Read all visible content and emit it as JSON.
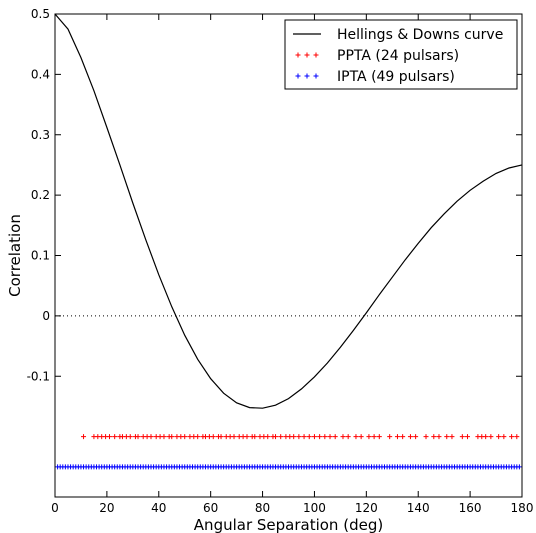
{
  "chart_data": {
    "type": "line",
    "title": "",
    "xlabel": "Angular Separation (deg)",
    "ylabel": "Correlation",
    "xlim": [
      0,
      180
    ],
    "ylim": [
      -0.3,
      0.5
    ],
    "xticks": [
      0,
      20,
      40,
      60,
      80,
      100,
      120,
      140,
      160,
      180
    ],
    "xtick_labels": [
      "0",
      "20",
      "40",
      "60",
      "80",
      "100",
      "120",
      "140",
      "160",
      "180"
    ],
    "yticks": [
      -0.1,
      0,
      0.1,
      0.2,
      0.3,
      0.4,
      0.5
    ],
    "ytick_labels": [
      "-0.1",
      "0",
      "0.1",
      "0.2",
      "0.3",
      "0.4",
      "0.5"
    ],
    "zero_line": {
      "y": 0,
      "style": "dotted"
    },
    "legend_position": "top-right",
    "series": [
      {
        "name": "Hellings & Downs curve",
        "kind": "line",
        "color": "#000000",
        "x": [
          0,
          5,
          10,
          15,
          20,
          25,
          30,
          35,
          40,
          45,
          50,
          55,
          60,
          65,
          70,
          75,
          80,
          85,
          90,
          95,
          100,
          105,
          110,
          115,
          120,
          125,
          130,
          135,
          140,
          145,
          150,
          155,
          160,
          165,
          170,
          175,
          180
        ],
        "y": [
          0.5,
          0.475,
          0.428,
          0.373,
          0.312,
          0.25,
          0.187,
          0.126,
          0.068,
          0.015,
          -0.032,
          -0.072,
          -0.104,
          -0.128,
          -0.144,
          -0.152,
          -0.153,
          -0.148,
          -0.137,
          -0.121,
          -0.101,
          -0.078,
          -0.052,
          -0.024,
          0.005,
          0.035,
          0.064,
          0.093,
          0.12,
          0.146,
          0.169,
          0.19,
          0.208,
          0.223,
          0.236,
          0.245,
          0.25
        ]
      },
      {
        "name": "PPTA (24 pulsars)",
        "kind": "scatter",
        "marker": "+",
        "color": "#ff0000",
        "y_level": -0.2,
        "x": [
          11,
          15,
          16.5,
          18,
          19.5,
          21,
          23,
          25,
          26,
          27.5,
          29,
          31,
          32,
          34,
          35.5,
          37,
          39,
          40.5,
          42,
          44,
          45,
          47,
          48.5,
          50,
          52,
          53.5,
          55,
          57,
          58,
          59.5,
          61,
          63,
          64,
          66,
          67.5,
          69,
          71,
          72.5,
          74,
          76,
          77,
          79,
          80.5,
          82,
          84,
          85,
          87,
          89,
          90.5,
          92,
          94,
          96,
          98,
          100,
          102,
          104,
          106,
          108,
          111,
          113,
          116,
          118,
          121,
          123,
          125,
          129,
          132,
          134,
          137,
          139,
          143,
          146,
          148,
          151,
          153,
          157,
          159,
          163,
          164.5,
          166,
          168,
          171,
          173,
          176,
          178
        ]
      },
      {
        "name": "IPTA (49 pulsars)",
        "kind": "scatter",
        "marker": "+",
        "color": "#0000ff",
        "y_level": -0.25,
        "x": [
          1,
          2,
          3,
          4,
          5,
          6,
          7,
          8,
          9,
          10,
          11,
          12,
          13,
          14,
          15,
          16,
          17,
          18,
          19,
          20,
          21,
          22,
          23,
          24,
          25,
          26,
          27,
          28,
          29,
          30,
          31,
          32,
          33,
          34,
          35,
          36,
          37,
          38,
          39,
          40,
          41,
          42,
          43,
          44,
          45,
          46,
          47,
          48,
          49,
          50,
          51,
          52,
          53,
          54,
          55,
          56,
          57,
          58,
          59,
          60,
          61,
          62,
          63,
          64,
          65,
          66,
          67,
          68,
          69,
          70,
          71,
          72,
          73,
          74,
          75,
          76,
          77,
          78,
          79,
          80,
          81,
          82,
          83,
          84,
          85,
          86,
          87,
          88,
          89,
          90,
          91,
          92,
          93,
          94,
          95,
          96,
          97,
          98,
          99,
          100,
          101,
          102,
          103,
          104,
          105,
          106,
          107,
          108,
          109,
          110,
          111,
          112,
          113,
          114,
          115,
          116,
          117,
          118,
          119,
          120,
          121,
          122,
          123,
          124,
          125,
          126,
          127,
          128,
          129,
          130,
          131,
          132,
          133,
          134,
          135,
          136,
          137,
          138,
          139,
          140,
          141,
          142,
          143,
          144,
          145,
          146,
          147,
          148,
          149,
          150,
          151,
          152,
          153,
          154,
          155,
          156,
          157,
          158,
          159,
          160,
          161,
          162,
          163,
          164,
          165,
          166,
          167,
          168,
          169,
          170,
          171,
          172,
          173,
          174,
          175,
          176,
          177,
          178,
          179
        ]
      }
    ]
  }
}
